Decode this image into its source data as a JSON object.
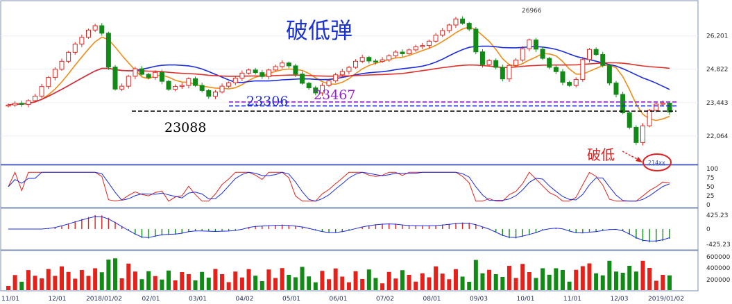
{
  "chart_data": {
    "type": "candlestick",
    "title": "破低弹",
    "date_axis": [
      "11/01",
      "12/01",
      "2018/01/02",
      "02/01",
      "03/01",
      "04/02",
      "05/01",
      "06/01",
      "07/02",
      "08/01",
      "09/03",
      "10/01",
      "11/01",
      "12/03",
      "2019/01/02"
    ],
    "main_panel": {
      "y_ticks": [
        "26,201",
        "24,822",
        "23,443",
        "22,064"
      ],
      "peak_label": "26966",
      "low_label": "214xx",
      "horizontal_levels": [
        {
          "label": "23088",
          "value": 23088,
          "color": "#000000"
        },
        {
          "label": "23306",
          "value": 23306,
          "color": "#1a2be0"
        },
        {
          "label": "23467",
          "value": 23467,
          "color": "#9b1fd6"
        }
      ],
      "annotation": "破低",
      "moving_averages": [
        {
          "color": "#1a2be0"
        },
        {
          "color": "#e0302a"
        },
        {
          "color": "#f08c16"
        }
      ],
      "close_series": [
        23343,
        23412,
        23368,
        23522,
        23710,
        24105,
        24480,
        24820,
        25150,
        25520,
        25860,
        26140,
        26440,
        26620,
        26310,
        24910,
        24000,
        24120,
        24530,
        24840,
        24610,
        24480,
        24690,
        24320,
        23990,
        24110,
        24150,
        24430,
        24150,
        23940,
        23700,
        23880,
        24120,
        24260,
        24450,
        24660,
        24790,
        24680,
        24520,
        24790,
        24930,
        25080,
        24960,
        24620,
        24240,
        24050,
        23840,
        24150,
        24340,
        24590,
        24730,
        24900,
        25150,
        25310,
        25160,
        25140,
        25210,
        25380,
        25530,
        25460,
        25620,
        25750,
        25800,
        25980,
        26230,
        26420,
        26650,
        26900,
        26720,
        26480,
        25540,
        25010,
        25180,
        24900,
        24420,
        24980,
        25200,
        25670,
        26030,
        25650,
        25270,
        24900,
        24720,
        24280,
        24150,
        24400,
        25220,
        25640,
        25430,
        24980,
        24250,
        23780,
        23020,
        22420,
        21790,
        22480,
        23120,
        23380,
        23420,
        23050
      ]
    },
    "kd_panel": {
      "y_ticks": [
        "100",
        "75",
        "50",
        "25",
        "0"
      ]
    },
    "macd_panel": {
      "y_ticks": [
        "425.23",
        "0",
        "-425.23"
      ]
    },
    "volume_panel": {
      "y_ticks": [
        "600000",
        "400000",
        "200000"
      ]
    }
  }
}
